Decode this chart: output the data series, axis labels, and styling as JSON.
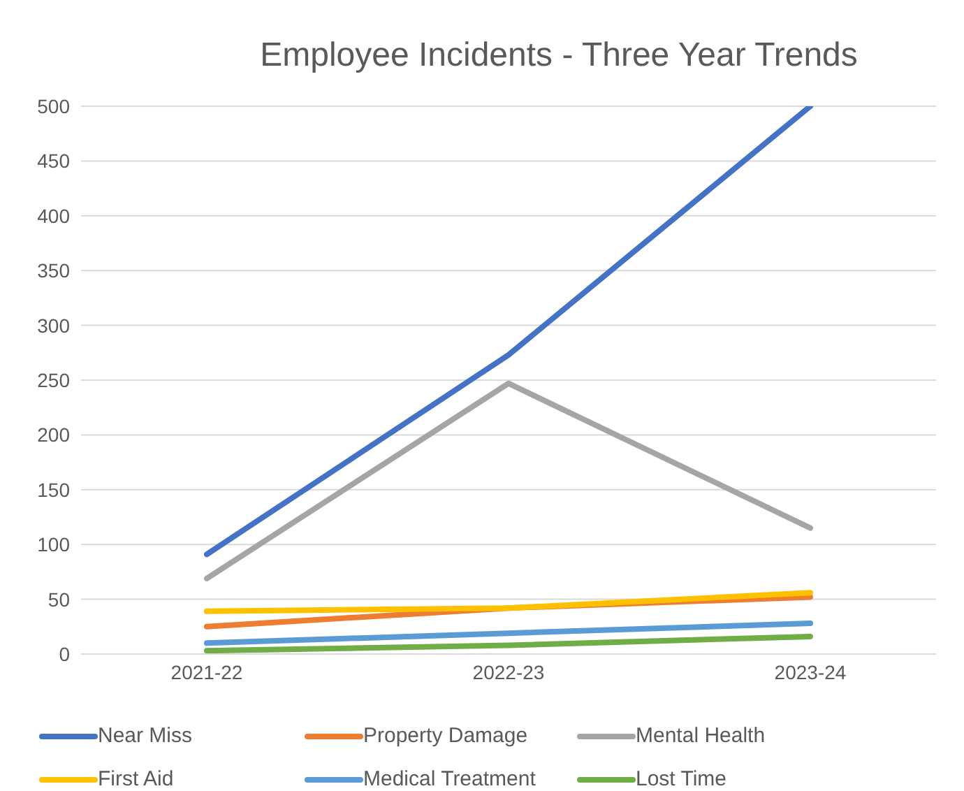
{
  "chart_data": {
    "type": "line",
    "title": "Employee Incidents - Three Year Trends",
    "categories": [
      "2021-22",
      "2022-23",
      "2023-24"
    ],
    "series": [
      {
        "name": "Near Miss",
        "color": "#4472c4",
        "values": [
          91,
          273,
          500
        ]
      },
      {
        "name": "Property Damage",
        "color": "#ed7d31",
        "values": [
          25,
          42,
          52
        ]
      },
      {
        "name": "Mental Health",
        "color": "#a5a5a5",
        "values": [
          69,
          247,
          115
        ]
      },
      {
        "name": "First Aid",
        "color": "#ffc000",
        "values": [
          39,
          42,
          56
        ]
      },
      {
        "name": "Medical Treatment",
        "color": "#5b9bd5",
        "values": [
          10,
          19,
          28
        ]
      },
      {
        "name": "Lost Time",
        "color": "#70ad47",
        "values": [
          3,
          8,
          16
        ]
      }
    ],
    "ylim": [
      0,
      500
    ],
    "yticks": [
      0,
      50,
      100,
      150,
      200,
      250,
      300,
      350,
      400,
      450,
      500
    ],
    "grid": "y",
    "legend": "bottom",
    "marker": "none",
    "line_style": "solid"
  }
}
